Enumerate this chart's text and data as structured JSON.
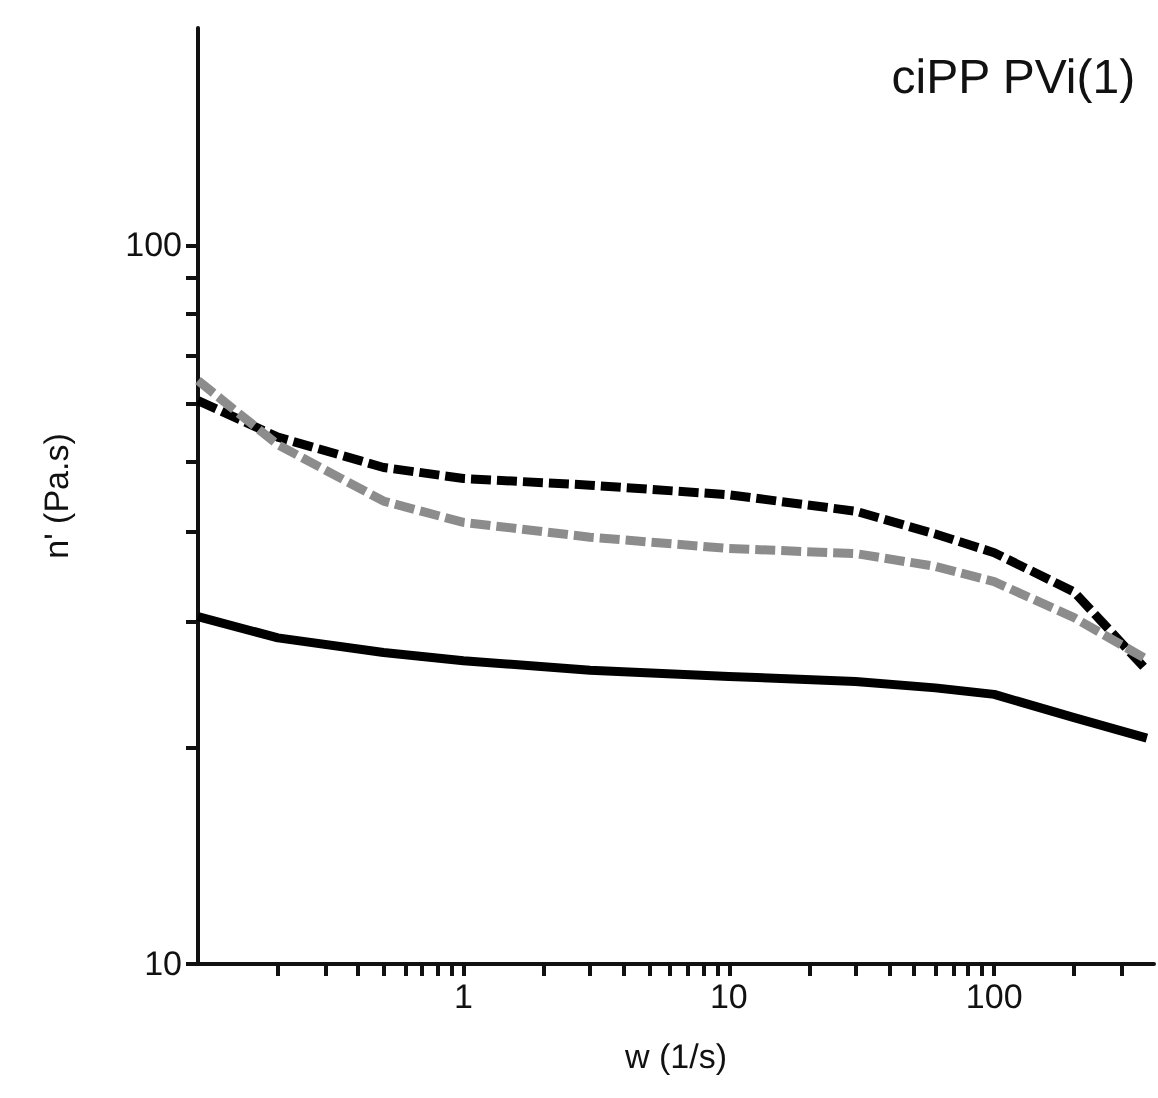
{
  "chart_data": {
    "type": "line",
    "title": "ciPP PVi(1)",
    "xlabel": "w (1/s)",
    "ylabel": "n' (Pa.s)",
    "log": "xy",
    "grid": false,
    "marker": "none",
    "xlim": [
      0.1,
      400
    ],
    "ylim": [
      10,
      200
    ],
    "xticks": [
      {
        "value": 0.2,
        "label": null
      },
      {
        "value": 0.3,
        "label": null
      },
      {
        "value": 0.4,
        "label": null
      },
      {
        "value": 0.5,
        "label": null
      },
      {
        "value": 0.6,
        "label": null
      },
      {
        "value": 0.7,
        "label": null
      },
      {
        "value": 0.8,
        "label": null
      },
      {
        "value": 0.9,
        "label": null
      },
      1,
      {
        "value": 2,
        "label": null
      },
      {
        "value": 3,
        "label": null
      },
      {
        "value": 4,
        "label": null
      },
      {
        "value": 5,
        "label": null
      },
      {
        "value": 6,
        "label": null
      },
      {
        "value": 7,
        "label": null
      },
      {
        "value": 8,
        "label": null
      },
      {
        "value": 9,
        "label": null
      },
      10,
      {
        "value": 20,
        "label": null
      },
      {
        "value": 30,
        "label": null
      },
      {
        "value": 40,
        "label": null
      },
      {
        "value": 50,
        "label": null
      },
      {
        "value": 60,
        "label": null
      },
      {
        "value": 70,
        "label": null
      },
      {
        "value": 80,
        "label": null
      },
      {
        "value": 90,
        "label": null
      },
      100,
      {
        "value": 200,
        "label": null
      },
      {
        "value": 300,
        "label": null
      }
    ],
    "yticks": [
      10,
      {
        "value": 20,
        "label": null
      },
      {
        "value": 30,
        "label": null
      },
      {
        "value": 40,
        "label": null
      },
      {
        "value": 50,
        "label": null
      },
      {
        "value": 60,
        "label": null
      },
      {
        "value": 70,
        "label": null
      },
      {
        "value": 80,
        "label": null
      },
      {
        "value": 90,
        "label": null
      },
      100
    ],
    "x": [
      0.1,
      0.2,
      0.5,
      1,
      3,
      10,
      30,
      60,
      100,
      200,
      376
    ],
    "series": [
      {
        "color": "#000000",
        "line_style": "dashed",
        "values": [
          60.7,
          54,
          49,
          47.3,
          46.3,
          44.9,
          42.6,
          39.6,
          37.3,
          32.9,
          25.6
        ]
      },
      {
        "color": "#8c8c8c",
        "line_style": "dashed",
        "values": [
          64.7,
          52.7,
          44,
          41.1,
          39.2,
          37.8,
          37.2,
          35.7,
          34,
          30.3,
          26.5
        ]
      },
      {
        "color": "#000000",
        "line_style": "solid",
        "values": [
          30.4,
          28.4,
          27.1,
          26.4,
          25.6,
          25.1,
          24.7,
          24.2,
          23.7,
          22,
          20.6
        ]
      }
    ]
  }
}
